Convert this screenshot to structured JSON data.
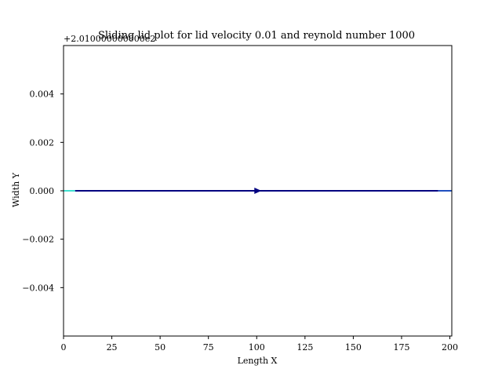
{
  "chart_data": {
    "type": "line",
    "title": "Sliding lid plot for lid velocity 0.01 and reynold number 1000",
    "xlabel": "Length X",
    "ylabel": "Width Y",
    "y_offset_text": "+2.010000000000e2",
    "xlim": [
      0,
      201
    ],
    "ylim": [
      -0.006,
      0.006
    ],
    "x_ticks": [
      0,
      25,
      50,
      75,
      100,
      125,
      150,
      175,
      200
    ],
    "x_tick_labels": [
      "0",
      "25",
      "50",
      "75",
      "100",
      "125",
      "150",
      "175",
      "200"
    ],
    "y_ticks": [
      -0.004,
      -0.002,
      0.0,
      0.002,
      0.004
    ],
    "y_tick_labels": [
      "−0.004",
      "−0.002",
      "0.000",
      "0.002",
      "0.004"
    ],
    "grid": false,
    "series": [
      {
        "color": "#000080",
        "x": [
          0,
          201
        ],
        "y": [
          0.0,
          0.0
        ],
        "segments": [
          {
            "x": [
              0,
              6
            ],
            "color": "#40e0d0"
          },
          {
            "x": [
              6,
              194
            ],
            "color": "#000080"
          },
          {
            "x": [
              194,
              201
            ],
            "color": "#1f4fbf"
          }
        ],
        "arrow": {
          "x": 100,
          "y": 0.0,
          "direction": "right",
          "color": "#000080"
        }
      }
    ]
  }
}
